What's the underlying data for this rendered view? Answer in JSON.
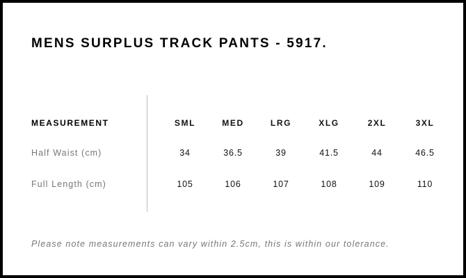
{
  "title": "MENS SURPLUS TRACK PANTS - 5917.",
  "table": {
    "header_label": "MEASUREMENT",
    "sizes": [
      "SML",
      "MED",
      "LRG",
      "XLG",
      "2XL",
      "3XL"
    ],
    "rows": [
      {
        "label": "Half Waist (cm)",
        "values": [
          "34",
          "36.5",
          "39",
          "41.5",
          "44",
          "46.5"
        ]
      },
      {
        "label": "Full Length (cm)",
        "values": [
          "105",
          "106",
          "107",
          "108",
          "109",
          "110"
        ]
      }
    ]
  },
  "note": "Please note measurements can vary within 2.5cm, this is within our tolerance."
}
